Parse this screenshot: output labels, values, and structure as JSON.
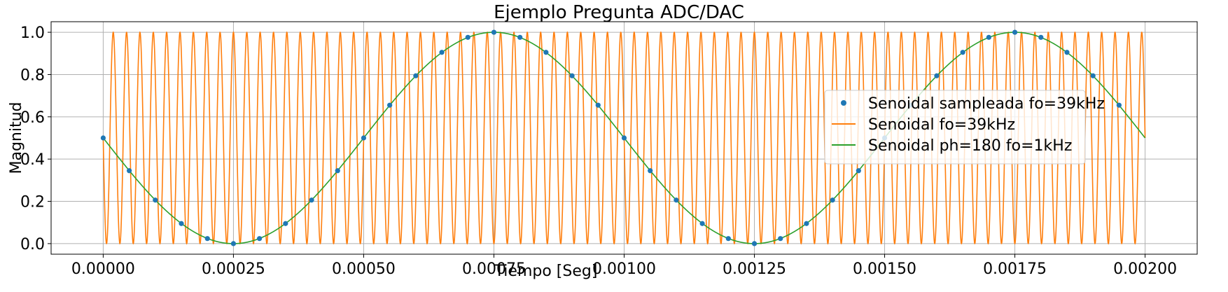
{
  "chart_data": {
    "type": "line",
    "title": "Ejemplo Pregunta ADC/DAC",
    "xlabel": "Tiempo [Seg]",
    "ylabel": "Magnitud",
    "xlim": [
      -0.0001,
      0.0021
    ],
    "ylim": [
      -0.05,
      1.05
    ],
    "xticks": [
      "0.00000",
      "0.00025",
      "0.00050",
      "0.00075",
      "0.00100",
      "0.00125",
      "0.00150",
      "0.00175",
      "0.00200"
    ],
    "xtick_values": [
      0,
      0.00025,
      0.0005,
      0.00075,
      0.001,
      0.00125,
      0.0015,
      0.00175,
      0.002
    ],
    "yticks": [
      "0.0",
      "0.2",
      "0.4",
      "0.6",
      "0.8",
      "1.0"
    ],
    "ytick_values": [
      0,
      0.2,
      0.4,
      0.6,
      0.8,
      1.0
    ],
    "grid": true,
    "legend_position": "center-right",
    "series": [
      {
        "name": "Senoidal sampleada fo=39kHz",
        "kind": "scatter",
        "color": "#1f77b4",
        "x": [
          0,
          5e-05,
          0.0001,
          0.00015,
          0.0002,
          0.00025,
          0.0003,
          0.00035,
          0.0004,
          0.00045,
          0.0005,
          0.00055,
          0.0006,
          0.00065,
          0.0007,
          0.00075,
          0.0008,
          0.00085,
          0.0009,
          0.00095,
          0.001,
          0.00105,
          0.0011,
          0.00115,
          0.0012,
          0.00125,
          0.0013,
          0.00135,
          0.0014,
          0.00145,
          0.0015,
          0.00155,
          0.0016,
          0.00165,
          0.0017,
          0.00175,
          0.0018,
          0.00185,
          0.0019,
          0.00195
        ],
        "y": [
          0.5,
          0.345,
          0.206,
          0.095,
          0.024,
          0.0,
          0.024,
          0.095,
          0.206,
          0.345,
          0.5,
          0.655,
          0.794,
          0.905,
          0.976,
          1.0,
          0.976,
          0.905,
          0.794,
          0.655,
          0.5,
          0.345,
          0.206,
          0.095,
          0.024,
          0.0,
          0.024,
          0.095,
          0.206,
          0.345,
          0.5,
          0.655,
          0.794,
          0.905,
          0.976,
          1.0,
          0.976,
          0.905,
          0.794,
          0.655
        ]
      },
      {
        "name": "Senoidal fo=39kHz",
        "kind": "line",
        "color": "#ff7f0e",
        "frequency_hz": 39000,
        "amplitude": 0.5,
        "offset": 0.5,
        "x_range": [
          0,
          0.002
        ]
      },
      {
        "name": "Senoidal ph=180 fo=1kHz",
        "kind": "line",
        "color": "#2ca02c",
        "frequency_hz": 1000,
        "phase_deg": 180,
        "amplitude": 0.5,
        "offset": 0.5,
        "x_range": [
          0,
          0.002
        ]
      }
    ]
  }
}
